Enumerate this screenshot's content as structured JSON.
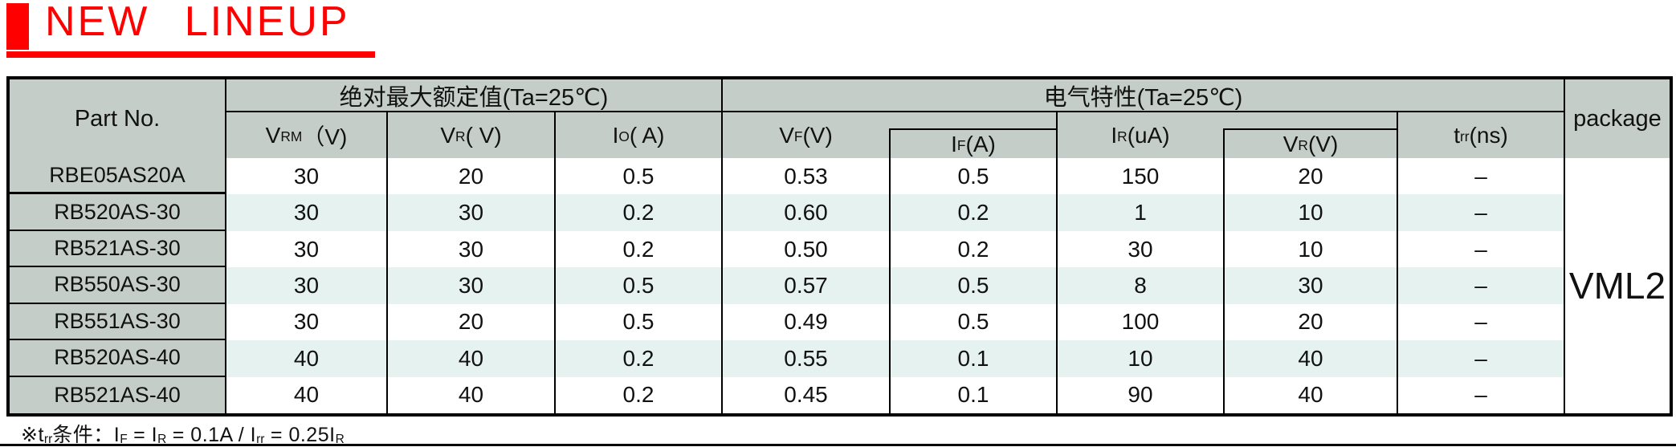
{
  "title": {
    "text": "NEW LINEUP"
  },
  "colors": {
    "accent_red": "#ff0000",
    "header_bg": "#c5cdc9",
    "alt_row_bg": "#e6f2ef",
    "border": "#000000"
  },
  "table": {
    "part_no_header": "Part No.",
    "group_abs_max": "绝对最大额定值(Ta=25℃)",
    "group_elec": "电气特性(Ta=25℃)",
    "package_header": "package",
    "package_value": "VML2",
    "columns": [
      {
        "base": "V",
        "sub": "RM",
        "unit": "（V)"
      },
      {
        "base": "V",
        "sub": "R",
        "unit": "( V)"
      },
      {
        "base": "I",
        "sub": "O",
        "unit": "( A)"
      },
      {
        "base": "V",
        "sub": "F",
        "unit": " (V)"
      },
      {
        "base": "I",
        "sub": "F",
        "unit": " (A)"
      },
      {
        "base": "I",
        "sub": "R",
        "unit": " (uA)"
      },
      {
        "base": "V",
        "sub": "R",
        "unit": " (V)"
      },
      {
        "base": "t",
        "sub": "rr",
        "unit": " (ns)"
      }
    ],
    "rows": [
      {
        "part": "RBE05AS20A",
        "values": [
          "30",
          "20",
          "0.5",
          "0.53",
          "0.5",
          "150",
          "20",
          "–"
        ]
      },
      {
        "part": "RB520AS-30",
        "values": [
          "30",
          "30",
          "0.2",
          "0.60",
          "0.2",
          "1",
          "10",
          "–"
        ]
      },
      {
        "part": "RB521AS-30",
        "values": [
          "30",
          "30",
          "0.2",
          "0.50",
          "0.2",
          "30",
          "10",
          "–"
        ]
      },
      {
        "part": "RB550AS-30",
        "values": [
          "30",
          "30",
          "0.5",
          "0.57",
          "0.5",
          "8",
          "30",
          "–"
        ]
      },
      {
        "part": "RB551AS-30",
        "values": [
          "30",
          "20",
          "0.5",
          "0.49",
          "0.5",
          "100",
          "20",
          "–"
        ]
      },
      {
        "part": "RB520AS-40",
        "values": [
          "40",
          "40",
          "0.2",
          "0.55",
          "0.1",
          "10",
          "40",
          "–"
        ]
      },
      {
        "part": "RB521AS-40",
        "values": [
          "40",
          "40",
          "0.2",
          "0.45",
          "0.1",
          "90",
          "40",
          "–"
        ]
      }
    ]
  },
  "footnote": {
    "segments": [
      {
        "text": "※t"
      },
      {
        "text": "rr",
        "sub": true
      },
      {
        "text": "条件：I"
      },
      {
        "text": "F",
        "sub": true
      },
      {
        "text": " = I"
      },
      {
        "text": "R",
        "sub": true
      },
      {
        "text": " = 0.1A / I"
      },
      {
        "text": "rr",
        "sub": true
      },
      {
        "text": " = 0.25I"
      },
      {
        "text": "R",
        "sub": true
      }
    ]
  }
}
